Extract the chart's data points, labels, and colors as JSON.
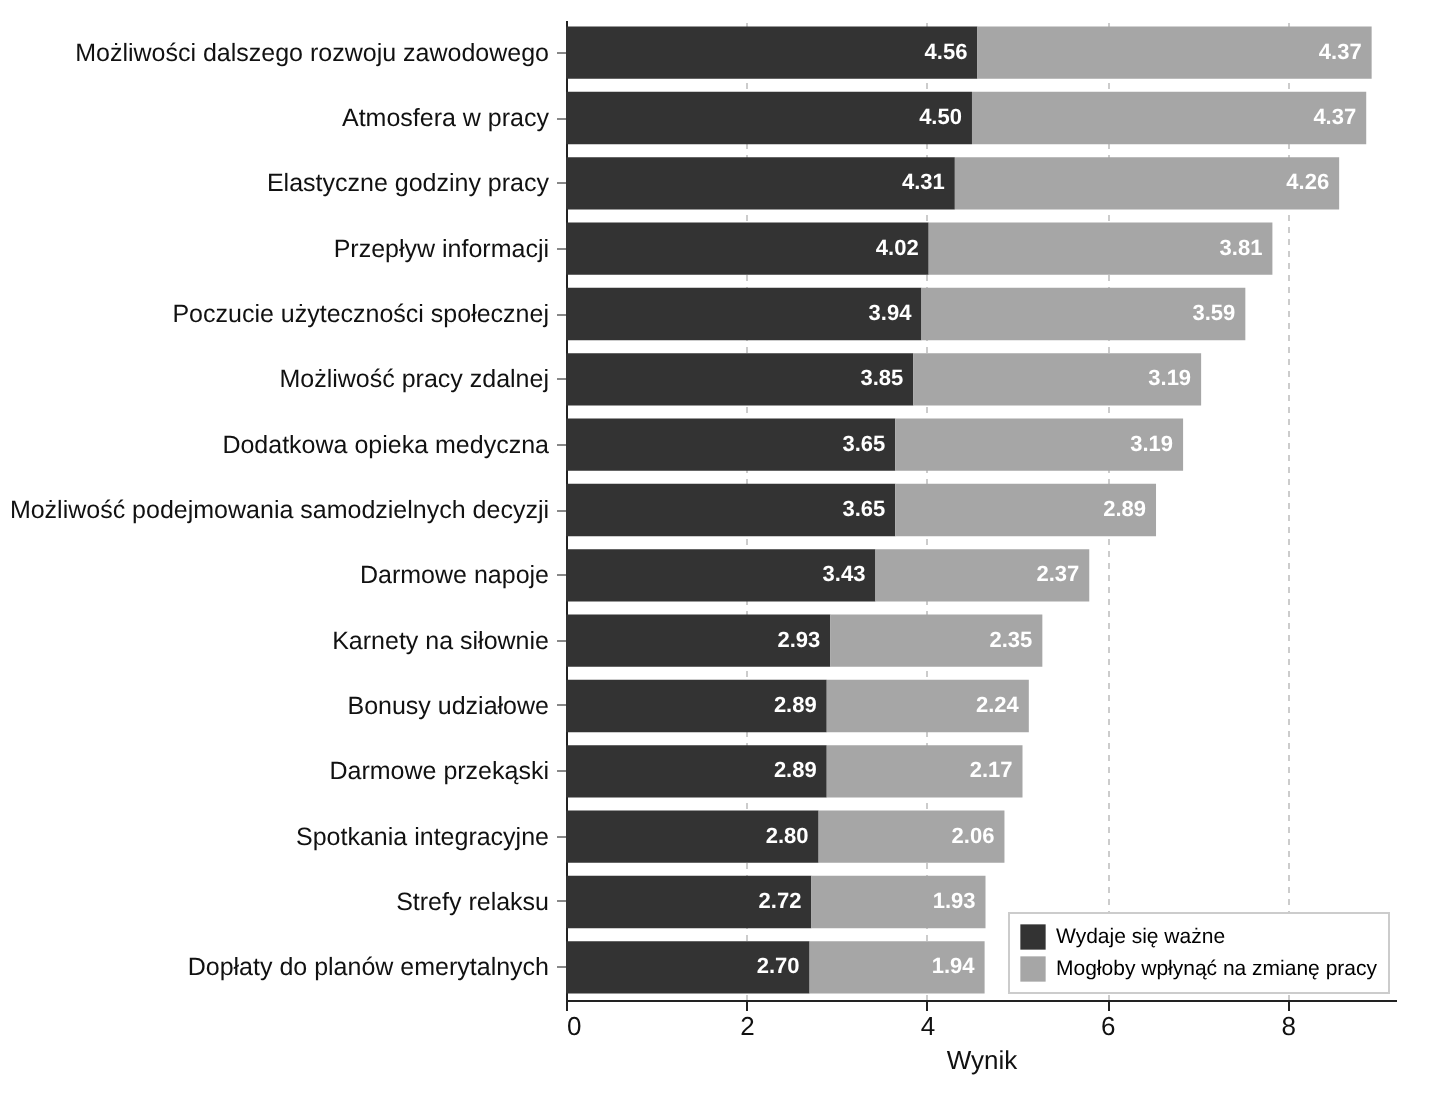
{
  "chart_data": {
    "type": "bar",
    "orientation": "horizontal",
    "stacked": true,
    "xlabel": "Wynik",
    "categories": [
      "Możliwości dalszego rozwoju zawodowego",
      "Atmosfera w pracy",
      "Elastyczne godziny pracy",
      "Przepływ informacji",
      "Poczucie użyteczności społecznej",
      "Możliwość pracy zdalnej",
      "Dodatkowa opieka medyczna",
      "Możliwość podejmowania samodzielnych decyzji",
      "Darmowe napoje",
      "Karnety na siłownie",
      "Bonusy udziałowe",
      "Darmowe przekąski",
      "Spotkania integracyjne",
      "Strefy relaksu",
      "Dopłaty do planów emerytalnych"
    ],
    "series": [
      {
        "name": "Wydaje się ważne",
        "color": "#333333",
        "values": [
          4.56,
          4.5,
          4.31,
          4.02,
          3.94,
          3.85,
          3.65,
          3.65,
          3.43,
          2.93,
          2.89,
          2.89,
          2.8,
          2.72,
          2.7
        ],
        "value_labels": [
          "4.56",
          "4.50",
          "4.31",
          "4.02",
          "3.94",
          "3.85",
          "3.65",
          "3.65",
          "3.43",
          "2.93",
          "2.89",
          "2.89",
          "2.80",
          "2.72",
          "2.70"
        ]
      },
      {
        "name": "Mogłoby wpłynąć na zmianę pracy",
        "color": "#a6a6a6",
        "values": [
          4.37,
          4.37,
          4.26,
          3.81,
          3.59,
          3.19,
          3.19,
          2.89,
          2.37,
          2.35,
          2.24,
          2.17,
          2.06,
          1.93,
          1.94
        ],
        "value_labels": [
          "4.37",
          "4.37",
          "4.26",
          "3.81",
          "3.59",
          "3.19",
          "3.19",
          "2.89",
          "2.37",
          "2.35",
          "2.24",
          "2.17",
          "2.06",
          "1.93",
          "1.94"
        ]
      }
    ],
    "xlim": [
      0,
      9.2
    ],
    "xticks": [
      0,
      2,
      4,
      6,
      8
    ],
    "grid": "x",
    "legend": "bottom right"
  }
}
